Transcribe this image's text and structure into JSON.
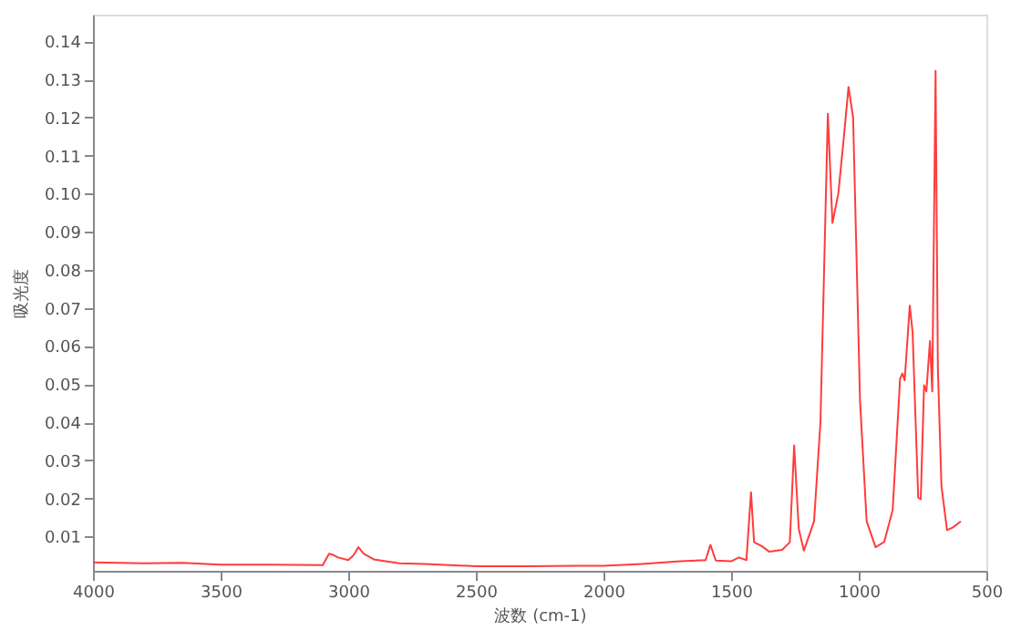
{
  "chart_data": {
    "type": "line",
    "xlabel": "波数 (cm-1)",
    "ylabel": "吸光度",
    "x": [
      4000,
      3800,
      3650,
      3500,
      3300,
      3100,
      3075,
      3060,
      3040,
      3000,
      2980,
      2960,
      2940,
      2900,
      2800,
      2700,
      2500,
      2300,
      2100,
      2000,
      1850,
      1700,
      1600,
      1581,
      1560,
      1500,
      1470,
      1440,
      1422,
      1410,
      1380,
      1350,
      1300,
      1270,
      1253,
      1235,
      1215,
      1175,
      1150,
      1121,
      1103,
      1080,
      1058,
      1040,
      1022,
      995,
      969,
      934,
      900,
      867,
      838,
      829,
      820,
      800,
      789,
      767,
      757,
      744,
      735,
      721,
      712,
      699,
      690,
      676,
      654,
      631,
      600
    ],
    "series": [
      {
        "color": "#ff3c3c",
        "values": [
          0.0032,
          0.003,
          0.0031,
          0.0026,
          0.0026,
          0.0025,
          0.0055,
          0.0052,
          0.0045,
          0.0038,
          0.005,
          0.0072,
          0.0055,
          0.004,
          0.003,
          0.0028,
          0.0022,
          0.0022,
          0.0023,
          0.0023,
          0.0028,
          0.0035,
          0.0038,
          0.0078,
          0.0037,
          0.0035,
          0.0045,
          0.0038,
          0.0216,
          0.0085,
          0.0075,
          0.006,
          0.0065,
          0.0085,
          0.0339,
          0.012,
          0.0063,
          0.014,
          0.04,
          0.121,
          0.0923,
          0.1,
          0.115,
          0.128,
          0.12,
          0.0458,
          0.014,
          0.0072,
          0.0086,
          0.017,
          0.0514,
          0.0528,
          0.051,
          0.0706,
          0.0636,
          0.0202,
          0.0198,
          0.0497,
          0.0481,
          0.0613,
          0.0481,
          0.1322,
          0.0543,
          0.0233,
          0.0117,
          0.0124,
          0.014
        ]
      }
    ],
    "xlim": [
      4000,
      500
    ],
    "xticks": [
      4000,
      3500,
      3000,
      2500,
      2000,
      1500,
      1000,
      500
    ],
    "ylim": [
      0.001,
      0.147
    ],
    "yticks": [
      0.01,
      0.02,
      0.03,
      0.04,
      0.05,
      0.06,
      0.07,
      0.08,
      0.09,
      {
        "value": 0.1,
        "label": "0.10"
      },
      0.11,
      0.12,
      0.13,
      0.14
    ],
    "grid": false,
    "line_style": "solid",
    "marker": "none"
  }
}
